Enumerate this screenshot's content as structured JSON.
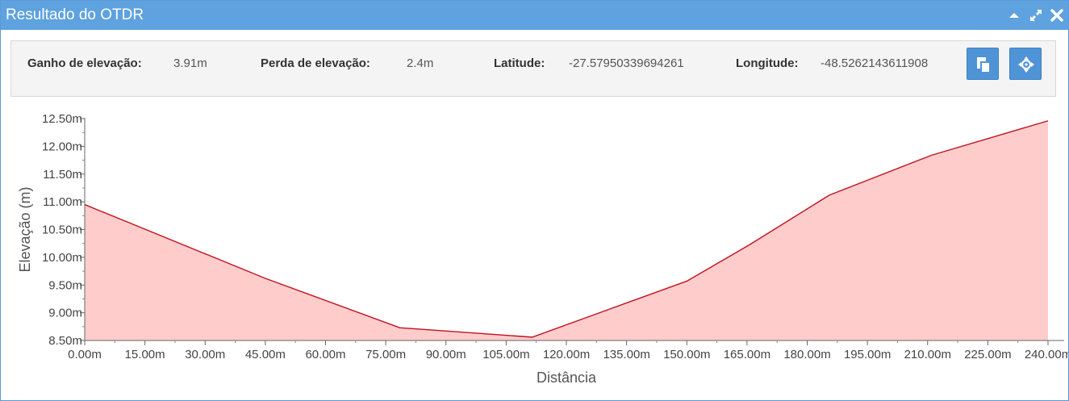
{
  "window": {
    "title": "Resultado do OTDR"
  },
  "info": {
    "gain_label": "Ganho de elevação:",
    "gain_value": "3.91m",
    "loss_label": "Perda de elevação:",
    "loss_value": "2.4m",
    "lat_label": "Latitude:",
    "lat_value": "-27.57950339694261",
    "lon_label": "Longitude:",
    "lon_value": "-48.5262143611908"
  },
  "icons": {
    "copy": "copy-icon",
    "locate": "crosshair-icon",
    "collapse": "caret-up-icon",
    "expand": "expand-icon",
    "close": "close-icon"
  },
  "colors": {
    "titlebar": "#5ea2df",
    "button": "#4f94d6",
    "line": "#c0121c",
    "area": "#ffcccc"
  },
  "chart_data": {
    "type": "area",
    "xlabel": "Distância",
    "ylabel": "Elevação (m)",
    "xlim": [
      0,
      240
    ],
    "ylim": [
      8.5,
      12.5
    ],
    "x_ticks": [
      0,
      15,
      30,
      45,
      60,
      75,
      90,
      105,
      120,
      135,
      150,
      165,
      180,
      195,
      210,
      225,
      240
    ],
    "x_tick_labels": [
      "0.00m",
      "15.00m",
      "30.00m",
      "45.00m",
      "60.00m",
      "75.00m",
      "90.00m",
      "105.00m",
      "120.00m",
      "135.00m",
      "150.00m",
      "165.00m",
      "180.00m",
      "195.00m",
      "210.00m",
      "225.00m",
      "240.00m"
    ],
    "y_ticks": [
      8.5,
      9.0,
      9.5,
      10.0,
      10.5,
      11.0,
      11.5,
      12.0,
      12.5
    ],
    "y_tick_labels": [
      "8.50m",
      "9.00m",
      "9.50m",
      "10.00m",
      "10.50m",
      "11.00m",
      "11.50m",
      "12.00m",
      "12.50m"
    ],
    "series": [
      {
        "x": [
          0,
          45,
          78.5,
          111.5,
          150,
          165.5,
          185.5,
          211,
          240
        ],
        "y": [
          10.95,
          9.62,
          8.73,
          8.56,
          9.57,
          10.22,
          11.12,
          11.84,
          12.46
        ]
      }
    ],
    "grid": false,
    "legend": "none"
  }
}
